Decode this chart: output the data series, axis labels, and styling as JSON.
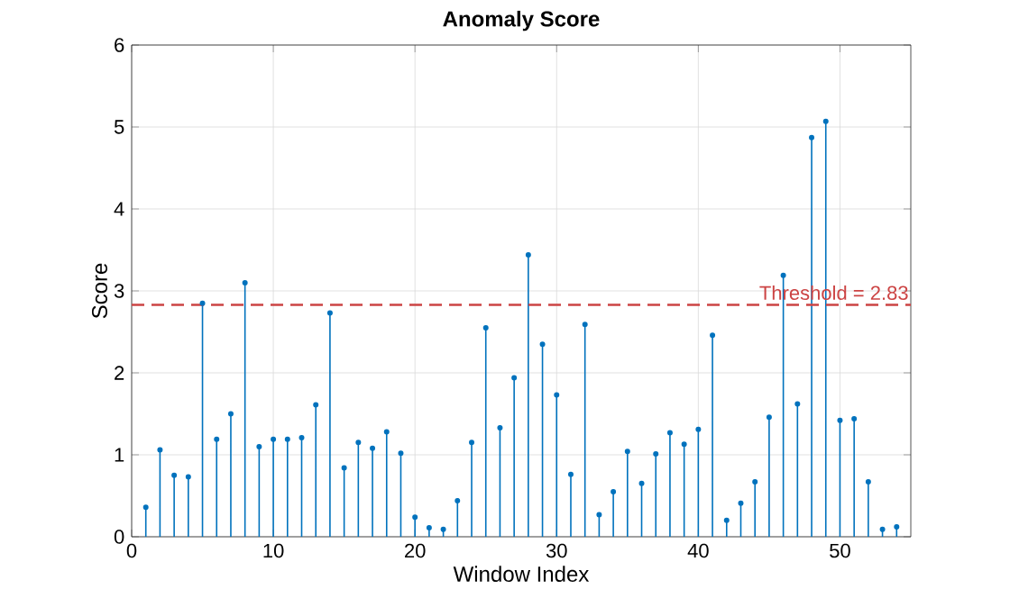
{
  "chart_data": {
    "type": "lollipop",
    "title": "Anomaly Score",
    "xlabel": "Window Index",
    "ylabel": "Score",
    "x": [
      1,
      2,
      3,
      4,
      5,
      6,
      7,
      8,
      9,
      10,
      11,
      12,
      13,
      14,
      15,
      16,
      17,
      18,
      19,
      20,
      21,
      22,
      23,
      24,
      25,
      26,
      27,
      28,
      29,
      30,
      31,
      32,
      33,
      34,
      35,
      36,
      37,
      38,
      39,
      40,
      41,
      42,
      43,
      44,
      45,
      46,
      47,
      48,
      49,
      50,
      51,
      52,
      53,
      54
    ],
    "values": [
      0.36,
      1.06,
      0.75,
      0.73,
      2.85,
      1.19,
      1.5,
      3.1,
      1.1,
      1.19,
      1.19,
      1.21,
      1.61,
      2.73,
      0.84,
      1.15,
      1.08,
      1.28,
      1.02,
      0.24,
      0.11,
      0.09,
      0.44,
      1.15,
      2.55,
      1.33,
      1.94,
      3.44,
      2.35,
      1.73,
      0.76,
      2.59,
      0.27,
      0.55,
      1.04,
      0.65,
      1.01,
      1.27,
      1.13,
      1.31,
      2.46,
      0.2,
      0.41,
      0.67,
      1.46,
      3.19,
      1.62,
      4.87,
      5.07,
      1.42,
      1.44,
      0.67,
      0.09,
      0.12
    ],
    "color": "#0072bd",
    "marker": "circle",
    "xlim": [
      0,
      55
    ],
    "ylim": [
      0,
      6
    ],
    "xticks": [
      0,
      10,
      20,
      30,
      40,
      50
    ],
    "yticks": [
      0,
      1,
      2,
      3,
      4,
      5,
      6
    ],
    "grid": true,
    "ref_lines": [
      {
        "axis": "y",
        "value": 2.83,
        "label": "Threshold = 2.83",
        "color": "#cc4444",
        "line_style": "dashed"
      }
    ]
  }
}
